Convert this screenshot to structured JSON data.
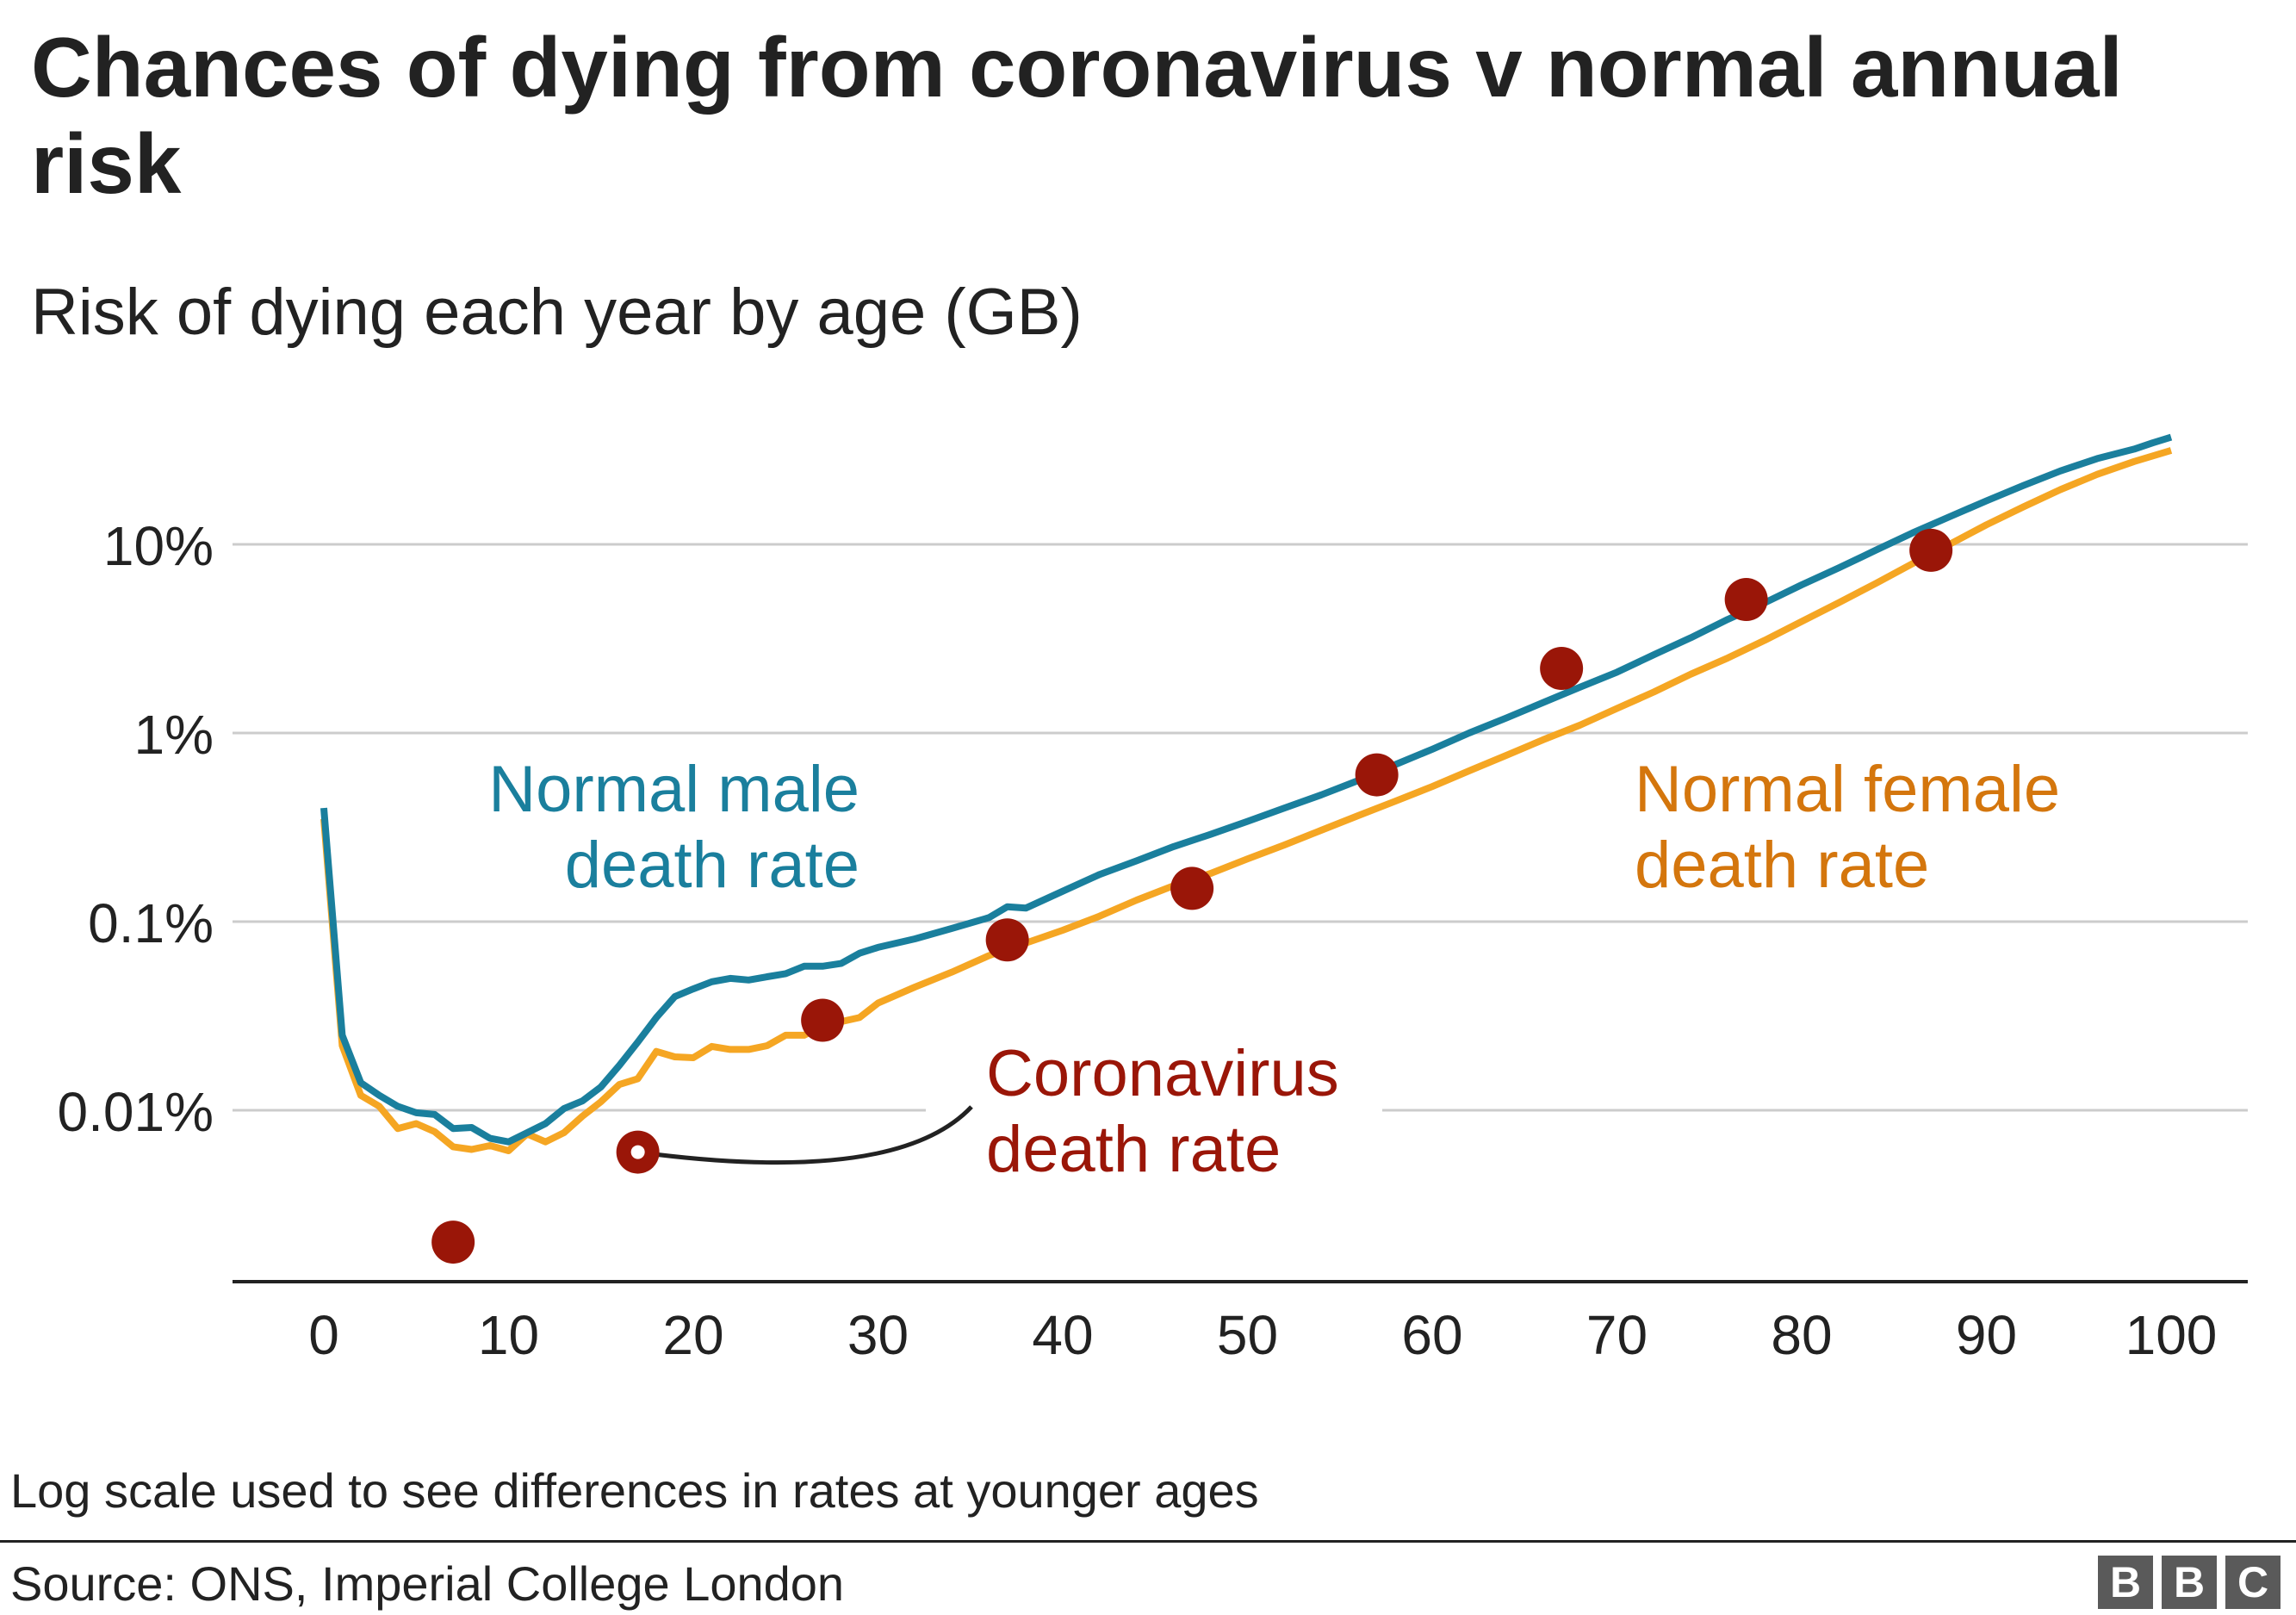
{
  "chart_data": {
    "type": "line",
    "title": "Chances of dying from coronavirus v normal annual risk",
    "subtitle": "Risk of dying each year by age (GB)",
    "y_scale": "log",
    "y_unit": "%",
    "ylim": [
      0.001,
      40
    ],
    "xlim": [
      0,
      100
    ],
    "x_ticks": [
      0,
      10,
      20,
      30,
      40,
      50,
      60,
      70,
      80,
      90,
      100
    ],
    "x_tick_labels": [
      "0",
      "10",
      "20",
      "30",
      "40",
      "50",
      "60",
      "70",
      "80",
      "90",
      "100"
    ],
    "y_ticks": [
      0.01,
      0.1,
      1,
      10
    ],
    "y_tick_labels": [
      "0.01%",
      "0.1%",
      "1%",
      "10%"
    ],
    "grid": "horizontal",
    "series": [
      {
        "name": "Normal male death rate",
        "label_lines": [
          "Normal male",
          "death rate"
        ],
        "color": "#1a7f9d",
        "kind": "line",
        "x": [
          0,
          1,
          2,
          3,
          4,
          5,
          6,
          7,
          8,
          9,
          10,
          11,
          12,
          13,
          14,
          15,
          16,
          17,
          18,
          19,
          20,
          21,
          22,
          23,
          24,
          25,
          26,
          27,
          28,
          29,
          30,
          32,
          34,
          36,
          37,
          38,
          40,
          42,
          44,
          46,
          48,
          50,
          52,
          54,
          56,
          58,
          60,
          62,
          64,
          66,
          68,
          70,
          72,
          74,
          76,
          78,
          80,
          82,
          84,
          86,
          88,
          90,
          92,
          94,
          96,
          98,
          99,
          100
        ],
        "values": [
          0.4,
          0.025,
          0.014,
          0.012,
          0.0105,
          0.0097,
          0.0095,
          0.008,
          0.0081,
          0.0071,
          0.0068,
          0.0076,
          0.0085,
          0.0102,
          0.0112,
          0.0133,
          0.0173,
          0.023,
          0.031,
          0.04,
          0.044,
          0.048,
          0.05,
          0.049,
          0.051,
          0.053,
          0.058,
          0.058,
          0.06,
          0.068,
          0.073,
          0.081,
          0.092,
          0.105,
          0.12,
          0.118,
          0.145,
          0.178,
          0.21,
          0.25,
          0.29,
          0.34,
          0.4,
          0.47,
          0.56,
          0.68,
          0.82,
          1.0,
          1.2,
          1.45,
          1.75,
          2.1,
          2.6,
          3.2,
          4.0,
          4.9,
          6.1,
          7.5,
          9.3,
          11.5,
          14.0,
          17.0,
          20.5,
          24.5,
          28.5,
          32.0,
          34.5,
          37.0
        ]
      },
      {
        "name": "Normal female death rate",
        "label_lines": [
          "Normal female",
          "death rate"
        ],
        "color": "#f5a623",
        "label_color": "#d4760d",
        "kind": "line",
        "x": [
          0,
          1,
          2,
          3,
          4,
          5,
          6,
          7,
          8,
          9,
          10,
          11,
          12,
          13,
          14,
          15,
          16,
          17,
          18,
          19,
          20,
          21,
          22,
          23,
          24,
          25,
          26,
          27,
          28,
          29,
          30,
          32,
          34,
          36,
          38,
          40,
          42,
          44,
          46,
          48,
          50,
          52,
          54,
          56,
          58,
          60,
          62,
          64,
          66,
          68,
          70,
          72,
          74,
          76,
          78,
          80,
          82,
          84,
          86,
          88,
          90,
          92,
          94,
          96,
          98,
          100
        ],
        "values": [
          0.35,
          0.022,
          0.012,
          0.0105,
          0.008,
          0.0085,
          0.0077,
          0.0064,
          0.0062,
          0.0065,
          0.0061,
          0.0075,
          0.0068,
          0.0076,
          0.0093,
          0.0111,
          0.0137,
          0.0147,
          0.0205,
          0.0192,
          0.019,
          0.0218,
          0.021,
          0.021,
          0.022,
          0.025,
          0.025,
          0.028,
          0.0295,
          0.031,
          0.037,
          0.045,
          0.054,
          0.066,
          0.077,
          0.09,
          0.107,
          0.13,
          0.155,
          0.18,
          0.215,
          0.255,
          0.305,
          0.365,
          0.435,
          0.52,
          0.63,
          0.76,
          0.92,
          1.1,
          1.35,
          1.65,
          2.05,
          2.5,
          3.1,
          3.9,
          4.9,
          6.2,
          7.9,
          10.0,
          12.7,
          15.8,
          19.5,
          23.5,
          27.5,
          31.5
        ]
      },
      {
        "name": "Coronavirus death rate",
        "label_lines": [
          "Coronavirus",
          "death rate"
        ],
        "color": "#9a1608",
        "kind": "points",
        "x": [
          7,
          17,
          27,
          37,
          47,
          57,
          67,
          77,
          87
        ],
        "values": [
          0.002,
          0.006,
          0.03,
          0.08,
          0.15,
          0.6,
          2.2,
          5.1,
          9.3
        ]
      }
    ]
  },
  "footer": {
    "note": "Log scale used to see differences in rates at younger ages",
    "source": "Source: ONS, Imperial College London",
    "logo_letters": [
      "B",
      "B",
      "C"
    ]
  }
}
